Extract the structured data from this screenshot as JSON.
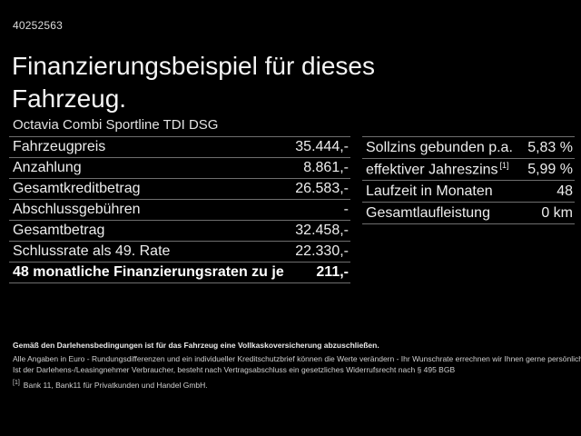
{
  "header": {
    "vehicle_id": "40252563",
    "title": "Finanzierungsbeispiel für dieses Fahrzeug.",
    "subtitle": "Octavia Combi Sportline TDI DSG"
  },
  "finance_table": {
    "rows": [
      {
        "label": "Fahrzeugpreis",
        "value": "35.444,-"
      },
      {
        "label": "Anzahlung",
        "value": "8.861,-"
      },
      {
        "label": "Gesamtkreditbetrag",
        "value": "26.583,-"
      },
      {
        "label": "Abschlussgebühren",
        "value": "-"
      },
      {
        "label": "Gesamtbetrag",
        "value": "32.458,-"
      },
      {
        "label": "Schlussrate als 49. Rate",
        "value": "22.330,-"
      },
      {
        "label": "48 monatliche Finanzierungsraten zu je",
        "value": "211,-"
      }
    ]
  },
  "conditions_table": {
    "rows": [
      {
        "label": "Sollzins gebunden p.a.",
        "marker": "",
        "value": "5,83 %"
      },
      {
        "label": "effektiver Jahreszins",
        "marker": "[1]",
        "value": "5,99 %"
      },
      {
        "label": "Laufzeit in Monaten",
        "marker": "",
        "value": "48"
      },
      {
        "label": "Gesamtlaufleistung",
        "marker": "",
        "value": "0 km"
      }
    ]
  },
  "fine_print": {
    "line1": "Gemäß den Darlehensbedingungen ist für das Fahrzeug eine Vollkaskoversicherung abzuschließen.",
    "line2": "Alle Angaben in Euro - Rundungsdifferenzen und ein individueller Kreditschutzbrief können die Werte verändern - Ihr Wunschrate errechnen wir Ihnen gerne persönlich",
    "line3": "Ist der Darlehens-/Leasingnehmer Verbraucher, besteht nach Vertragsabschluss ein gesetzliches Widerrufsrecht nach § 495 BGB",
    "footnote_marker": "[1]",
    "footnote_text": "Bank 11, Bank11 für Privatkunden und Handel GmbH."
  }
}
